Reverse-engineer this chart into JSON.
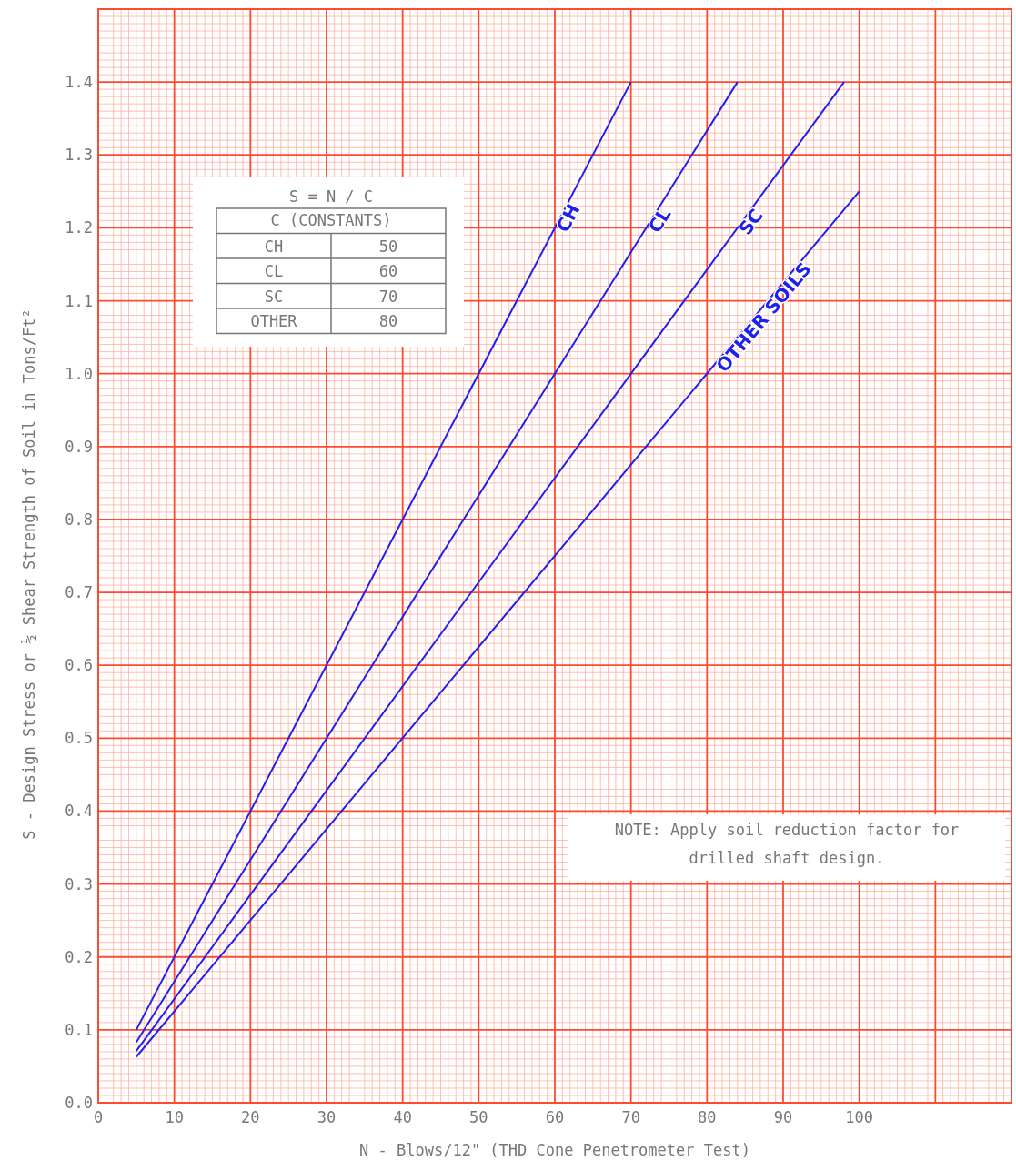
{
  "chart_data": {
    "type": "line",
    "xlabel": "N - Blows/12\" (THD Cone Penetrometer Test)",
    "ylabel": "S - Design Stress or ½ Shear Strength of Soil in Tons/Ft²",
    "xlim": [
      0,
      120
    ],
    "ylim": [
      0,
      1.5
    ],
    "xticks": [
      0,
      {
        "value": 1,
        "label": null
      },
      {
        "value": 2,
        "label": null
      },
      {
        "value": 3,
        "label": null
      },
      {
        "value": 4,
        "label": null
      },
      {
        "value": 5,
        "label": null
      },
      {
        "value": 6,
        "label": null
      },
      {
        "value": 7,
        "label": null
      },
      {
        "value": 8,
        "label": null
      },
      {
        "value": 9,
        "label": null
      },
      10,
      {
        "value": 11,
        "label": null
      },
      {
        "value": 12,
        "label": null
      },
      {
        "value": 13,
        "label": null
      },
      {
        "value": 14,
        "label": null
      },
      {
        "value": 15,
        "label": null
      },
      {
        "value": 16,
        "label": null
      },
      {
        "value": 17,
        "label": null
      },
      {
        "value": 18,
        "label": null
      },
      {
        "value": 19,
        "label": null
      },
      20,
      {
        "value": 21,
        "label": null
      },
      {
        "value": 22,
        "label": null
      },
      {
        "value": 23,
        "label": null
      },
      {
        "value": 24,
        "label": null
      },
      {
        "value": 25,
        "label": null
      },
      {
        "value": 26,
        "label": null
      },
      {
        "value": 27,
        "label": null
      },
      {
        "value": 28,
        "label": null
      },
      {
        "value": 29,
        "label": null
      },
      30,
      {
        "value": 31,
        "label": null
      },
      {
        "value": 32,
        "label": null
      },
      {
        "value": 33,
        "label": null
      },
      {
        "value": 34,
        "label": null
      },
      {
        "value": 35,
        "label": null
      },
      {
        "value": 36,
        "label": null
      },
      {
        "value": 37,
        "label": null
      },
      {
        "value": 38,
        "label": null
      },
      {
        "value": 39,
        "label": null
      },
      40,
      {
        "value": 41,
        "label": null
      },
      {
        "value": 42,
        "label": null
      },
      {
        "value": 43,
        "label": null
      },
      {
        "value": 44,
        "label": null
      },
      {
        "value": 45,
        "label": null
      },
      {
        "value": 46,
        "label": null
      },
      {
        "value": 47,
        "label": null
      },
      {
        "value": 48,
        "label": null
      },
      {
        "value": 49,
        "label": null
      },
      50,
      {
        "value": 51,
        "label": null
      },
      {
        "value": 52,
        "label": null
      },
      {
        "value": 53,
        "label": null
      },
      {
        "value": 54,
        "label": null
      },
      {
        "value": 55,
        "label": null
      },
      {
        "value": 56,
        "label": null
      },
      {
        "value": 57,
        "label": null
      },
      {
        "value": 58,
        "label": null
      },
      {
        "value": 59,
        "label": null
      },
      60,
      {
        "value": 61,
        "label": null
      },
      {
        "value": 62,
        "label": null
      },
      {
        "value": 63,
        "label": null
      },
      {
        "value": 64,
        "label": null
      },
      {
        "value": 65,
        "label": null
      },
      {
        "value": 66,
        "label": null
      },
      {
        "value": 67,
        "label": null
      },
      {
        "value": 68,
        "label": null
      },
      {
        "value": 69,
        "label": null
      },
      70,
      {
        "value": 71,
        "label": null
      },
      {
        "value": 72,
        "label": null
      },
      {
        "value": 73,
        "label": null
      },
      {
        "value": 74,
        "label": null
      },
      {
        "value": 75,
        "label": null
      },
      {
        "value": 76,
        "label": null
      },
      {
        "value": 77,
        "label": null
      },
      {
        "value": 78,
        "label": null
      },
      {
        "value": 79,
        "label": null
      },
      80,
      {
        "value": 81,
        "label": null
      },
      {
        "value": 82,
        "label": null
      },
      {
        "value": 83,
        "label": null
      },
      {
        "value": 84,
        "label": null
      },
      {
        "value": 85,
        "label": null
      },
      {
        "value": 86,
        "label": null
      },
      {
        "value": 87,
        "label": null
      },
      {
        "value": 88,
        "label": null
      },
      {
        "value": 89,
        "label": null
      },
      90,
      {
        "value": 91,
        "label": null
      },
      {
        "value": 92,
        "label": null
      },
      {
        "value": 93,
        "label": null
      },
      {
        "value": 94,
        "label": null
      },
      {
        "value": 95,
        "label": null
      },
      {
        "value": 96,
        "label": null
      },
      {
        "value": 97,
        "label": null
      },
      {
        "value": 98,
        "label": null
      },
      {
        "value": 99,
        "label": null
      },
      100,
      {
        "value": 101,
        "label": null
      },
      {
        "value": 102,
        "label": null
      },
      {
        "value": 103,
        "label": null
      },
      {
        "value": 104,
        "label": null
      },
      {
        "value": 105,
        "label": null
      },
      {
        "value": 106,
        "label": null
      },
      {
        "value": 107,
        "label": null
      },
      {
        "value": 108,
        "label": null
      },
      {
        "value": 109,
        "label": null
      },
      {
        "value": 110,
        "label": null
      },
      {
        "value": 111,
        "label": null
      },
      {
        "value": 112,
        "label": null
      },
      {
        "value": 113,
        "label": null
      },
      {
        "value": 114,
        "label": null
      },
      {
        "value": 115,
        "label": null
      },
      {
        "value": 116,
        "label": null
      },
      {
        "value": 117,
        "label": null
      },
      {
        "value": 118,
        "label": null
      },
      {
        "value": 119,
        "label": null
      },
      {
        "value": 120,
        "label": null
      }
    ],
    "yticks": [
      {
        "value": 0,
        "label": "0.0"
      },
      {
        "value": 0.01,
        "label": null
      },
      {
        "value": 0.02,
        "label": null
      },
      {
        "value": 0.03,
        "label": null
      },
      {
        "value": 0.04,
        "label": null
      },
      {
        "value": 0.05,
        "label": null
      },
      {
        "value": 0.06,
        "label": null
      },
      {
        "value": 0.07,
        "label": null
      },
      {
        "value": 0.08,
        "label": null
      },
      {
        "value": 0.09,
        "label": null
      },
      0.1,
      {
        "value": 0.11,
        "label": null
      },
      {
        "value": 0.12,
        "label": null
      },
      {
        "value": 0.13,
        "label": null
      },
      {
        "value": 0.14,
        "label": null
      },
      {
        "value": 0.15,
        "label": null
      },
      {
        "value": 0.16,
        "label": null
      },
      {
        "value": 0.17,
        "label": null
      },
      {
        "value": 0.18,
        "label": null
      },
      {
        "value": 0.19,
        "label": null
      },
      0.2,
      {
        "value": 0.21,
        "label": null
      },
      {
        "value": 0.22,
        "label": null
      },
      {
        "value": 0.23,
        "label": null
      },
      {
        "value": 0.24,
        "label": null
      },
      {
        "value": 0.25,
        "label": null
      },
      {
        "value": 0.26,
        "label": null
      },
      {
        "value": 0.27,
        "label": null
      },
      {
        "value": 0.28,
        "label": null
      },
      {
        "value": 0.29,
        "label": null
      },
      0.3,
      {
        "value": 0.31,
        "label": null
      },
      {
        "value": 0.32,
        "label": null
      },
      {
        "value": 0.33,
        "label": null
      },
      {
        "value": 0.34,
        "label": null
      },
      {
        "value": 0.35,
        "label": null
      },
      {
        "value": 0.36,
        "label": null
      },
      {
        "value": 0.37,
        "label": null
      },
      {
        "value": 0.38,
        "label": null
      },
      {
        "value": 0.39,
        "label": null
      },
      0.4,
      {
        "value": 0.41,
        "label": null
      },
      {
        "value": 0.42,
        "label": null
      },
      {
        "value": 0.43,
        "label": null
      },
      {
        "value": 0.44,
        "label": null
      },
      {
        "value": 0.45,
        "label": null
      },
      {
        "value": 0.46,
        "label": null
      },
      {
        "value": 0.47,
        "label": null
      },
      {
        "value": 0.48,
        "label": null
      },
      {
        "value": 0.49,
        "label": null
      },
      0.5,
      {
        "value": 0.51,
        "label": null
      },
      {
        "value": 0.52,
        "label": null
      },
      {
        "value": 0.53,
        "label": null
      },
      {
        "value": 0.54,
        "label": null
      },
      {
        "value": 0.55,
        "label": null
      },
      {
        "value": 0.56,
        "label": null
      },
      {
        "value": 0.57,
        "label": null
      },
      {
        "value": 0.58,
        "label": null
      },
      {
        "value": 0.59,
        "label": null
      },
      0.6,
      {
        "value": 0.61,
        "label": null
      },
      {
        "value": 0.62,
        "label": null
      },
      {
        "value": 0.63,
        "label": null
      },
      {
        "value": 0.64,
        "label": null
      },
      {
        "value": 0.65,
        "label": null
      },
      {
        "value": 0.66,
        "label": null
      },
      {
        "value": 0.67,
        "label": null
      },
      {
        "value": 0.68,
        "label": null
      },
      {
        "value": 0.69,
        "label": null
      },
      0.7,
      {
        "value": 0.71,
        "label": null
      },
      {
        "value": 0.72,
        "label": null
      },
      {
        "value": 0.73,
        "label": null
      },
      {
        "value": 0.74,
        "label": null
      },
      {
        "value": 0.75,
        "label": null
      },
      {
        "value": 0.76,
        "label": null
      },
      {
        "value": 0.77,
        "label": null
      },
      {
        "value": 0.78,
        "label": null
      },
      {
        "value": 0.79,
        "label": null
      },
      0.8,
      {
        "value": 0.81,
        "label": null
      },
      {
        "value": 0.82,
        "label": null
      },
      {
        "value": 0.83,
        "label": null
      },
      {
        "value": 0.84,
        "label": null
      },
      {
        "value": 0.85,
        "label": null
      },
      {
        "value": 0.86,
        "label": null
      },
      {
        "value": 0.87,
        "label": null
      },
      {
        "value": 0.88,
        "label": null
      },
      {
        "value": 0.89,
        "label": null
      },
      0.9,
      {
        "value": 0.91,
        "label": null
      },
      {
        "value": 0.92,
        "label": null
      },
      {
        "value": 0.93,
        "label": null
      },
      {
        "value": 0.94,
        "label": null
      },
      {
        "value": 0.95,
        "label": null
      },
      {
        "value": 0.96,
        "label": null
      },
      {
        "value": 0.97,
        "label": null
      },
      {
        "value": 0.98,
        "label": null
      },
      {
        "value": 0.99,
        "label": null
      },
      {
        "value": 1,
        "label": "1.0"
      },
      {
        "value": 1.01,
        "label": null
      },
      {
        "value": 1.02,
        "label": null
      },
      {
        "value": 1.03,
        "label": null
      },
      {
        "value": 1.04,
        "label": null
      },
      {
        "value": 1.05,
        "label": null
      },
      {
        "value": 1.06,
        "label": null
      },
      {
        "value": 1.07,
        "label": null
      },
      {
        "value": 1.08,
        "label": null
      },
      {
        "value": 1.09,
        "label": null
      },
      1.1,
      {
        "value": 1.11,
        "label": null
      },
      {
        "value": 1.12,
        "label": null
      },
      {
        "value": 1.13,
        "label": null
      },
      {
        "value": 1.14,
        "label": null
      },
      {
        "value": 1.15,
        "label": null
      },
      {
        "value": 1.16,
        "label": null
      },
      {
        "value": 1.17,
        "label": null
      },
      {
        "value": 1.18,
        "label": null
      },
      {
        "value": 1.19,
        "label": null
      },
      1.2,
      {
        "value": 1.21,
        "label": null
      },
      {
        "value": 1.22,
        "label": null
      },
      {
        "value": 1.23,
        "label": null
      },
      {
        "value": 1.24,
        "label": null
      },
      {
        "value": 1.25,
        "label": null
      },
      {
        "value": 1.26,
        "label": null
      },
      {
        "value": 1.27,
        "label": null
      },
      {
        "value": 1.28,
        "label": null
      },
      {
        "value": 1.29,
        "label": null
      },
      1.3,
      {
        "value": 1.31,
        "label": null
      },
      {
        "value": 1.32,
        "label": null
      },
      {
        "value": 1.33,
        "label": null
      },
      {
        "value": 1.34,
        "label": null
      },
      {
        "value": 1.35,
        "label": null
      },
      {
        "value": 1.36,
        "label": null
      },
      {
        "value": 1.37,
        "label": null
      },
      {
        "value": 1.38,
        "label": null
      },
      {
        "value": 1.39,
        "label": null
      },
      1.4,
      {
        "value": 1.41,
        "label": null
      },
      {
        "value": 1.42,
        "label": null
      },
      {
        "value": 1.43,
        "label": null
      },
      {
        "value": 1.44,
        "label": null
      },
      {
        "value": 1.45,
        "label": null
      },
      {
        "value": 1.46,
        "label": null
      },
      {
        "value": 1.47,
        "label": null
      },
      {
        "value": 1.48,
        "label": null
      },
      {
        "value": 1.49,
        "label": null
      },
      {
        "value": 1.5,
        "label": null
      }
    ],
    "grid": true,
    "legend": false,
    "series": [
      {
        "name": "CH",
        "color": "#2020ee",
        "x": [
          5,
          70
        ],
        "values": [
          0.1,
          1.4
        ]
      },
      {
        "name": "CL",
        "color": "#2020ee",
        "x": [
          5,
          84
        ],
        "values": [
          0.083,
          1.4
        ]
      },
      {
        "name": "SC",
        "color": "#2020ee",
        "x": [
          5,
          98
        ],
        "values": [
          0.071,
          1.4
        ]
      },
      {
        "name": "OTHER SOILS",
        "color": "#2020ee",
        "x": [
          5,
          100
        ],
        "values": [
          0.063,
          1.25
        ]
      }
    ],
    "annotations": [
      "S = N / C",
      "C (CONSTANTS)",
      "CH",
      "50",
      "CL",
      "60",
      "SC",
      "70",
      "OTHER",
      "80",
      "NOTE: Apply soil reduction factor for drilled shaft design."
    ]
  }
}
